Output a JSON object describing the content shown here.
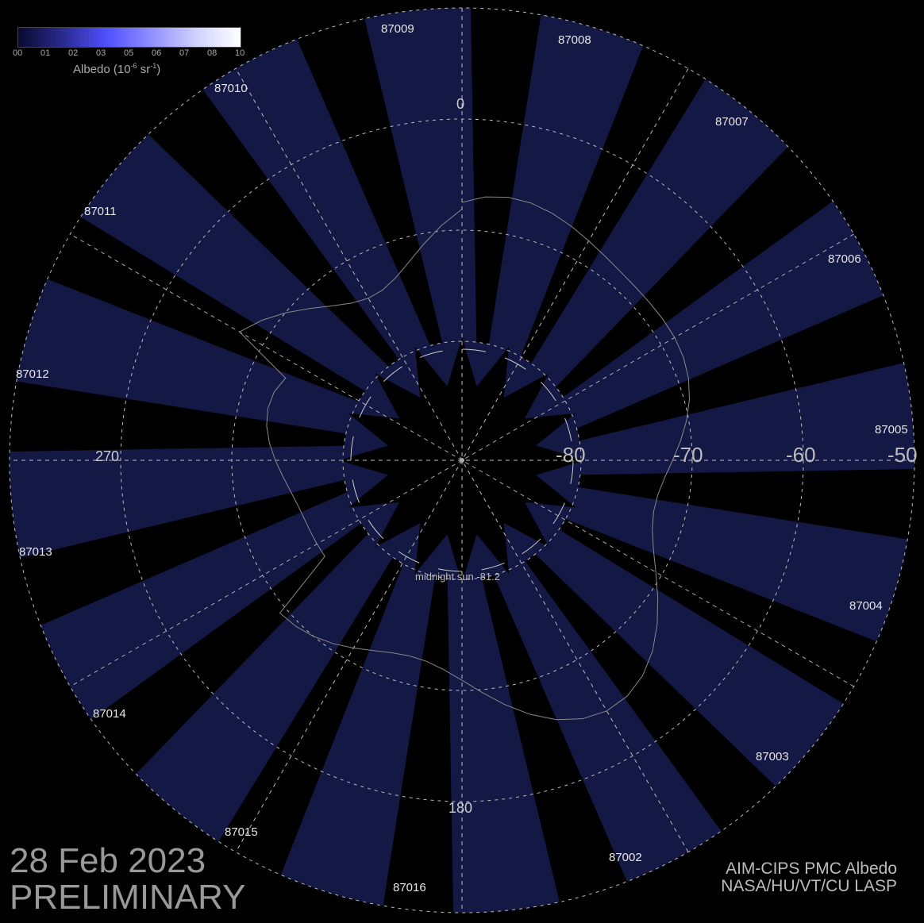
{
  "colorbar": {
    "ticks": [
      "00",
      "01",
      "02",
      "03",
      "05",
      "06",
      "07",
      "08",
      "10"
    ],
    "title": "Albedo (10",
    "title_exp1": "-6",
    "title_mid": " sr",
    "title_exp2": "-1",
    "title_end": ")",
    "colors": [
      "#0a0a30",
      "#2a2a90",
      "#5050ff",
      "#9090ff",
      "#d0d0ff",
      "#ffffff"
    ]
  },
  "map": {
    "projection": "south polar stereographic",
    "swath_color": "#141845",
    "background": "#000000",
    "orbits": [
      "87009",
      "87008",
      "87007",
      "87006",
      "87005",
      "87004",
      "87003",
      "87002",
      "87016",
      "87015",
      "87014",
      "87013",
      "87012",
      "87011",
      "87010"
    ],
    "latitude_labels": [
      "-80",
      "-70",
      "-60",
      "-50"
    ],
    "longitude_labels": [
      "0",
      "270",
      "180"
    ],
    "midnight_sun": "midnight sun -81.2"
  },
  "footer": {
    "date": "28 Feb 2023",
    "status": "PRELIMINARY",
    "credit_line1": "AIM-CIPS PMC Albedo",
    "credit_line2": "NASA/HU/VT/CU LASP"
  }
}
